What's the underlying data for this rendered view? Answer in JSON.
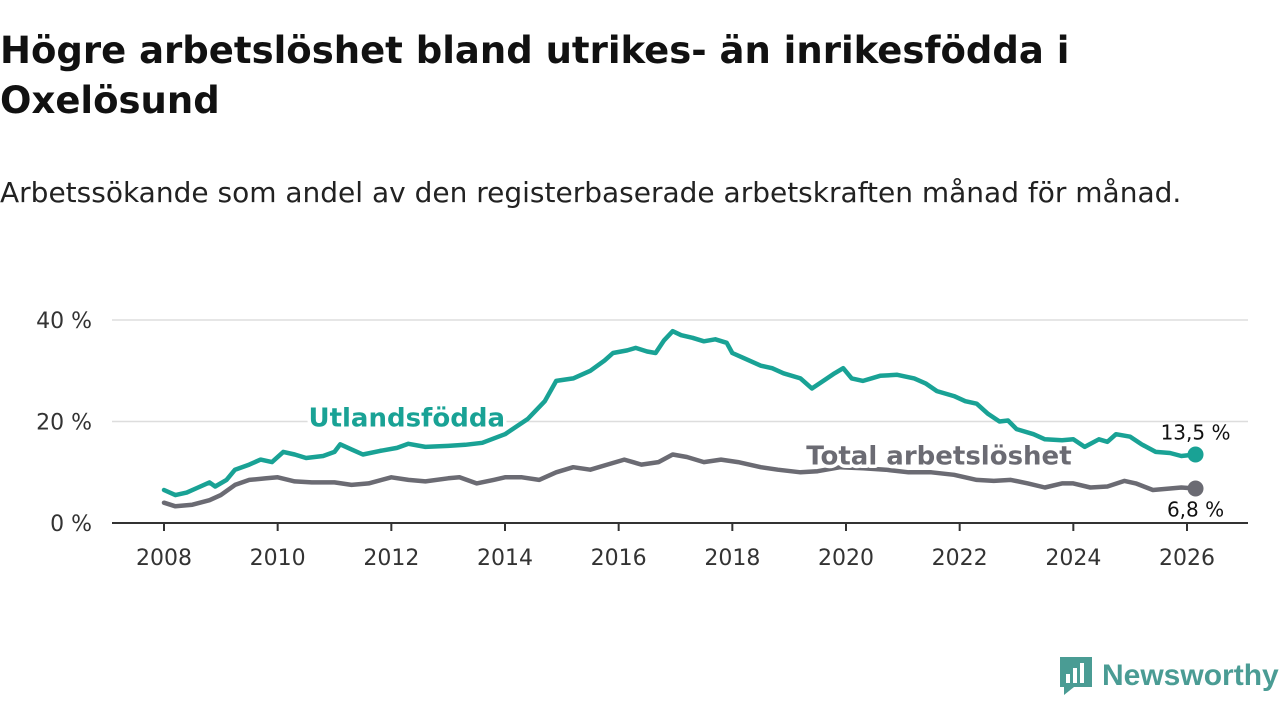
{
  "header": {
    "title": "Högre arbetslöshet bland utrikes- än inrikesfödda i Oxelösund",
    "subtitle": "Arbetssökande som andel av den registerbaserade arbetskraften månad för månad."
  },
  "brand": {
    "name": "Newsworthy",
    "icon": "newsworthy-logo-icon",
    "color": "#4a9c94"
  },
  "colors": {
    "foreign_born": "#19a295",
    "total": "#6b6b73",
    "grid": "#dddddd",
    "axis": "#333333"
  },
  "chart_data": {
    "type": "line",
    "title": "Högre arbetslöshet bland utrikes- än inrikesfödda i Oxelösund",
    "subtitle": "Arbetssökande som andel av den registerbaserade arbetskraften månad för månad.",
    "xlabel": "",
    "ylabel": "",
    "xlim": [
      2007.6,
      2027.1
    ],
    "ylim": [
      0,
      40
    ],
    "y_ticks": [
      {
        "value": 0,
        "label": "0 %"
      },
      {
        "value": 20,
        "label": "20 %"
      },
      {
        "value": 40,
        "label": "40 %"
      }
    ],
    "x_ticks": [
      {
        "value": 2008,
        "label": "2008"
      },
      {
        "value": 2010,
        "label": "2010"
      },
      {
        "value": 2012,
        "label": "2012"
      },
      {
        "value": 2014,
        "label": "2014"
      },
      {
        "value": 2016,
        "label": "2016"
      },
      {
        "value": 2018,
        "label": "2018"
      },
      {
        "value": 2020,
        "label": "2020"
      },
      {
        "value": 2022,
        "label": "2022"
      },
      {
        "value": 2024,
        "label": "2024"
      },
      {
        "value": 2026,
        "label": "2026"
      }
    ],
    "grid": true,
    "series": [
      {
        "name": "Utlandsfödda",
        "label": "Utlandsfödda",
        "color": "#19a295",
        "end_label": "13,5 %",
        "points": [
          [
            2008.0,
            6.5
          ],
          [
            2008.2,
            5.5
          ],
          [
            2008.4,
            6.0
          ],
          [
            2008.6,
            7.0
          ],
          [
            2008.8,
            8.0
          ],
          [
            2008.9,
            7.2
          ],
          [
            2009.1,
            8.5
          ],
          [
            2009.25,
            10.5
          ],
          [
            2009.5,
            11.5
          ],
          [
            2009.7,
            12.5
          ],
          [
            2009.9,
            12.0
          ],
          [
            2010.1,
            14.0
          ],
          [
            2010.3,
            13.5
          ],
          [
            2010.5,
            12.8
          ],
          [
            2010.8,
            13.2
          ],
          [
            2011.0,
            14.0
          ],
          [
            2011.1,
            15.5
          ],
          [
            2011.3,
            14.5
          ],
          [
            2011.5,
            13.5
          ],
          [
            2011.8,
            14.2
          ],
          [
            2012.1,
            14.8
          ],
          [
            2012.3,
            15.6
          ],
          [
            2012.6,
            15.0
          ],
          [
            2013.0,
            15.2
          ],
          [
            2013.3,
            15.4
          ],
          [
            2013.6,
            15.8
          ],
          [
            2014.0,
            17.5
          ],
          [
            2014.4,
            20.5
          ],
          [
            2014.7,
            24.0
          ],
          [
            2014.9,
            28.0
          ],
          [
            2015.2,
            28.5
          ],
          [
            2015.5,
            30.0
          ],
          [
            2015.75,
            32.0
          ],
          [
            2015.9,
            33.5
          ],
          [
            2016.15,
            34.0
          ],
          [
            2016.3,
            34.5
          ],
          [
            2016.5,
            33.8
          ],
          [
            2016.65,
            33.5
          ],
          [
            2016.8,
            36.0
          ],
          [
            2016.95,
            37.8
          ],
          [
            2017.1,
            37.0
          ],
          [
            2017.3,
            36.5
          ],
          [
            2017.5,
            35.8
          ],
          [
            2017.7,
            36.2
          ],
          [
            2017.9,
            35.5
          ],
          [
            2018.0,
            33.5
          ],
          [
            2018.2,
            32.5
          ],
          [
            2018.5,
            31.0
          ],
          [
            2018.7,
            30.5
          ],
          [
            2018.9,
            29.5
          ],
          [
            2019.2,
            28.5
          ],
          [
            2019.4,
            26.5
          ],
          [
            2019.6,
            28.0
          ],
          [
            2019.8,
            29.5
          ],
          [
            2019.95,
            30.5
          ],
          [
            2020.1,
            28.5
          ],
          [
            2020.3,
            28.0
          ],
          [
            2020.6,
            29.0
          ],
          [
            2020.9,
            29.2
          ],
          [
            2021.2,
            28.5
          ],
          [
            2021.4,
            27.5
          ],
          [
            2021.6,
            26.0
          ],
          [
            2021.9,
            25.0
          ],
          [
            2022.1,
            24.0
          ],
          [
            2022.3,
            23.5
          ],
          [
            2022.5,
            21.5
          ],
          [
            2022.7,
            20.0
          ],
          [
            2022.85,
            20.2
          ],
          [
            2023.0,
            18.5
          ],
          [
            2023.3,
            17.5
          ],
          [
            2023.5,
            16.5
          ],
          [
            2023.8,
            16.3
          ],
          [
            2024.0,
            16.5
          ],
          [
            2024.2,
            15.0
          ],
          [
            2024.45,
            16.5
          ],
          [
            2024.6,
            16.0
          ],
          [
            2024.75,
            17.5
          ],
          [
            2025.0,
            17.0
          ],
          [
            2025.2,
            15.5
          ],
          [
            2025.45,
            14.0
          ],
          [
            2025.7,
            13.8
          ],
          [
            2025.9,
            13.2
          ],
          [
            2026.15,
            13.5
          ]
        ]
      },
      {
        "name": "Total arbetslöshet",
        "label": "Total arbetslöshet",
        "color": "#6b6b73",
        "end_label": "6,8 %",
        "points": [
          [
            2008.0,
            4.0
          ],
          [
            2008.2,
            3.3
          ],
          [
            2008.5,
            3.6
          ],
          [
            2008.8,
            4.5
          ],
          [
            2009.0,
            5.5
          ],
          [
            2009.25,
            7.5
          ],
          [
            2009.5,
            8.5
          ],
          [
            2009.8,
            8.8
          ],
          [
            2010.0,
            9.0
          ],
          [
            2010.3,
            8.2
          ],
          [
            2010.6,
            8.0
          ],
          [
            2011.0,
            8.0
          ],
          [
            2011.3,
            7.5
          ],
          [
            2011.6,
            7.8
          ],
          [
            2012.0,
            9.0
          ],
          [
            2012.3,
            8.5
          ],
          [
            2012.6,
            8.2
          ],
          [
            2013.0,
            8.8
          ],
          [
            2013.2,
            9.0
          ],
          [
            2013.5,
            7.8
          ],
          [
            2013.8,
            8.5
          ],
          [
            2014.0,
            9.0
          ],
          [
            2014.3,
            9.0
          ],
          [
            2014.6,
            8.5
          ],
          [
            2014.9,
            10.0
          ],
          [
            2015.2,
            11.0
          ],
          [
            2015.5,
            10.5
          ],
          [
            2015.8,
            11.5
          ],
          [
            2016.1,
            12.5
          ],
          [
            2016.4,
            11.5
          ],
          [
            2016.7,
            12.0
          ],
          [
            2016.95,
            13.5
          ],
          [
            2017.2,
            13.0
          ],
          [
            2017.5,
            12.0
          ],
          [
            2017.8,
            12.5
          ],
          [
            2018.1,
            12.0
          ],
          [
            2018.5,
            11.0
          ],
          [
            2018.8,
            10.5
          ],
          [
            2019.2,
            10.0
          ],
          [
            2019.5,
            10.2
          ],
          [
            2019.9,
            11.0
          ],
          [
            2020.3,
            10.8
          ],
          [
            2020.7,
            10.5
          ],
          [
            2021.1,
            10.0
          ],
          [
            2021.5,
            10.0
          ],
          [
            2021.9,
            9.5
          ],
          [
            2022.3,
            8.5
          ],
          [
            2022.6,
            8.3
          ],
          [
            2022.9,
            8.5
          ],
          [
            2023.2,
            7.8
          ],
          [
            2023.5,
            7.0
          ],
          [
            2023.8,
            7.8
          ],
          [
            2024.0,
            7.8
          ],
          [
            2024.3,
            7.0
          ],
          [
            2024.6,
            7.2
          ],
          [
            2024.9,
            8.3
          ],
          [
            2025.1,
            7.8
          ],
          [
            2025.4,
            6.5
          ],
          [
            2025.7,
            6.8
          ],
          [
            2025.9,
            7.0
          ],
          [
            2026.15,
            6.8
          ]
        ]
      }
    ],
    "annotations": [
      {
        "series": "Utlandsfödda",
        "text": "Utlandsfödda",
        "x": 2014.0,
        "y": 19.0
      },
      {
        "series": "Total arbetslöshet",
        "text": "Total arbetslöshet",
        "x": 2019.3,
        "y": 11.5
      }
    ]
  }
}
